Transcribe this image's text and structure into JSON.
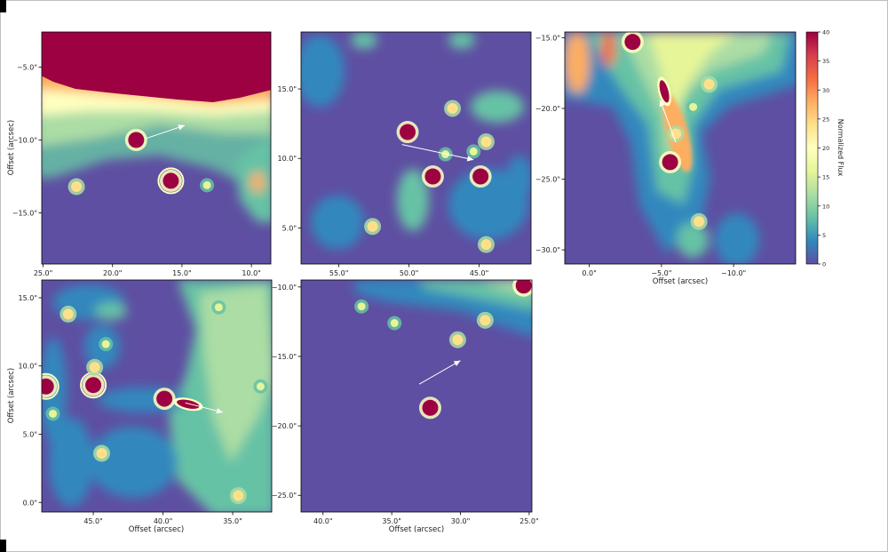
{
  "chart_data": [
    {
      "type": "heatmap",
      "panel": "top-left",
      "x_ticks": [
        "25.0\"",
        "20.0\"",
        "15.0\"",
        "10.0\""
      ],
      "y_ticks": [
        "−5.0\"",
        "−10.0\"",
        "−15.0\""
      ],
      "xlabel": "",
      "ylabel": "Offset (arcsec)",
      "sources": [
        {
          "x": 15.8,
          "y": -12.8,
          "level": "saturated",
          "ring": true
        },
        {
          "x": 18.3,
          "y": -10.0,
          "level": "saturated"
        },
        {
          "x": 22.6,
          "y": -13.2,
          "level": "medium"
        },
        {
          "x": 13.2,
          "y": -13.1,
          "level": "low"
        }
      ],
      "arrow": {
        "from": [
          17.6,
          -9.9
        ],
        "to": [
          14.8,
          -9.0
        ]
      }
    },
    {
      "type": "heatmap",
      "panel": "top-middle",
      "x_ticks": [
        "55.0\"",
        "50.0\"",
        "45.0\""
      ],
      "y_ticks": [
        "15.0\"",
        "10.0\"",
        "5.0\""
      ],
      "xlabel": "",
      "ylabel": "",
      "sources": [
        {
          "x": 50.1,
          "y": 11.9,
          "level": "saturated"
        },
        {
          "x": 48.3,
          "y": 8.7,
          "level": "saturated"
        },
        {
          "x": 44.9,
          "y": 8.7,
          "level": "saturated"
        },
        {
          "x": 46.9,
          "y": 13.6,
          "level": "medium"
        },
        {
          "x": 44.5,
          "y": 11.2,
          "level": "medium"
        },
        {
          "x": 45.4,
          "y": 10.5,
          "level": "low"
        },
        {
          "x": 47.4,
          "y": 10.3,
          "level": "low"
        },
        {
          "x": 52.6,
          "y": 5.1,
          "level": "medium"
        },
        {
          "x": 44.5,
          "y": 3.8,
          "level": "medium"
        }
      ],
      "arrow": {
        "from": [
          50.5,
          11.0
        ],
        "to": [
          45.4,
          9.9
        ]
      }
    },
    {
      "type": "heatmap",
      "panel": "top-right",
      "x_ticks": [
        "0.0\"",
        "−5.0\"",
        "−10.0\""
      ],
      "y_ticks": [
        "−15.0\"",
        "−20.0\"",
        "−25.0\"",
        "−30.0\""
      ],
      "xlabel": "Offset (arcsec)",
      "ylabel": "",
      "sources": [
        {
          "x": -5.2,
          "y": -18.8,
          "level": "saturated",
          "elongated": true
        },
        {
          "x": -5.6,
          "y": -23.8,
          "level": "saturated"
        },
        {
          "x": -3.0,
          "y": -15.3,
          "level": "saturated"
        },
        {
          "x": -8.3,
          "y": -18.3,
          "level": "medium"
        },
        {
          "x": -7.2,
          "y": -19.9,
          "level": "low"
        },
        {
          "x": -7.6,
          "y": -28.0,
          "level": "medium"
        },
        {
          "x": -6.0,
          "y": -21.8,
          "level": "medium"
        }
      ],
      "arrow": {
        "from": [
          -6.0,
          -22.4
        ],
        "to": [
          -4.9,
          -19.4
        ]
      },
      "colorbar": {
        "label": "Normalized Flux",
        "min": 0,
        "max": 40,
        "ticks": [
          "0",
          "5",
          "10",
          "15",
          "20",
          "25",
          "30",
          "35",
          "40"
        ]
      }
    },
    {
      "type": "heatmap",
      "panel": "bottom-left",
      "x_ticks": [
        "45.0\"",
        "40.0\"",
        "35.0\""
      ],
      "y_ticks": [
        "15.0\"",
        "10.0\"",
        "5.0\"",
        "0.0\""
      ],
      "xlabel": "Offset (arcsec)",
      "ylabel": "Offset (arcsec)",
      "sources": [
        {
          "x": 48.4,
          "y": 8.5,
          "level": "saturated",
          "ring": true
        },
        {
          "x": 45.0,
          "y": 8.6,
          "level": "saturated",
          "ring": true
        },
        {
          "x": 38.2,
          "y": 7.2,
          "level": "saturated",
          "elongated": true
        },
        {
          "x": 39.9,
          "y": 7.6,
          "level": "saturated"
        },
        {
          "x": 46.8,
          "y": 13.8,
          "level": "medium"
        },
        {
          "x": 44.9,
          "y": 9.9,
          "level": "medium"
        },
        {
          "x": 44.1,
          "y": 11.6,
          "level": "low"
        },
        {
          "x": 47.9,
          "y": 6.5,
          "level": "low"
        },
        {
          "x": 44.4,
          "y": 3.6,
          "level": "medium"
        },
        {
          "x": 36.0,
          "y": 14.3,
          "level": "low"
        },
        {
          "x": 33.0,
          "y": 8.5,
          "level": "low"
        },
        {
          "x": 34.6,
          "y": 0.5,
          "level": "medium"
        }
      ],
      "arrow": {
        "from": [
          38.4,
          7.3
        ],
        "to": [
          35.7,
          6.6
        ]
      }
    },
    {
      "type": "heatmap",
      "panel": "bottom-middle",
      "x_ticks": [
        "40.0\"",
        "35.0\"",
        "30.0\"",
        "25.0\""
      ],
      "y_ticks": [
        "−10.0\"",
        "−15.0\"",
        "−20.0\"",
        "−25.0\""
      ],
      "xlabel": "Offset (arcsec)",
      "ylabel": "",
      "sources": [
        {
          "x": 32.2,
          "y": -18.7,
          "level": "saturated"
        },
        {
          "x": 30.2,
          "y": -13.8,
          "level": "medium"
        },
        {
          "x": 28.2,
          "y": -12.4,
          "level": "medium"
        },
        {
          "x": 34.8,
          "y": -12.6,
          "level": "low"
        },
        {
          "x": 37.2,
          "y": -11.4,
          "level": "low"
        },
        {
          "x": 25.4,
          "y": -9.9,
          "level": "saturated"
        }
      ],
      "arrow": {
        "from": [
          33.0,
          -17.0
        ],
        "to": [
          30.0,
          -15.3
        ]
      }
    }
  ]
}
